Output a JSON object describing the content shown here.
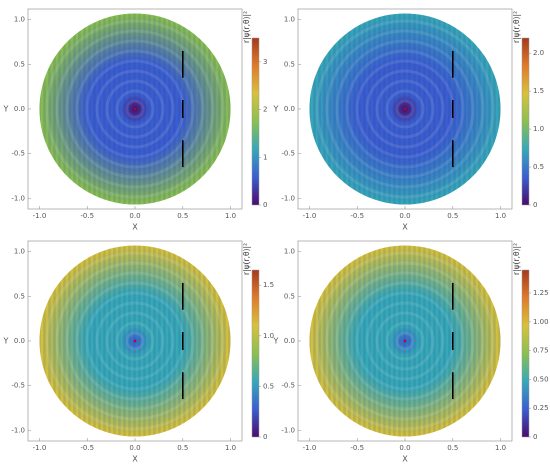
{
  "chart_data": [
    {
      "type": "heatmap",
      "x_label": "X",
      "y_label": "Y",
      "xlim": [
        -1.12,
        1.12
      ],
      "ylim": [
        -1.12,
        1.12
      ],
      "xticks": [
        {
          "value": -1,
          "label": "-1.0"
        },
        -0.5,
        {
          "value": 0,
          "label": "0.0"
        },
        0.5,
        {
          "value": 1,
          "label": "1.0"
        }
      ],
      "yticks": [
        {
          "value": -1,
          "label": "-1.0"
        },
        -0.5,
        {
          "value": 0,
          "label": "0.0"
        },
        0.5,
        {
          "value": 1,
          "label": "1.0"
        }
      ],
      "colorbar_label": "r|ψ(r,θ)|²",
      "clim": [
        0,
        3.5
      ],
      "cticks": [
        0,
        1,
        2,
        3
      ],
      "colormap": [
        "#4b0c6b",
        "#3a5ed0",
        "#36a8b8",
        "#8ac050",
        "#d7c13c",
        "#e07b2a",
        "#a43a1e"
      ]
    },
    {
      "type": "heatmap",
      "x_label": "X",
      "y_label": "Y",
      "xlim": [
        -1.12,
        1.12
      ],
      "ylim": [
        -1.12,
        1.12
      ],
      "xticks": [
        {
          "value": -1,
          "label": "-1.0"
        },
        -0.5,
        {
          "value": 0,
          "label": "0.0"
        },
        0.5,
        {
          "value": 1,
          "label": "1.0"
        }
      ],
      "yticks": [
        {
          "value": -1,
          "label": "-1.0"
        },
        -0.5,
        {
          "value": 0,
          "label": "0.0"
        },
        0.5,
        {
          "value": 1,
          "label": "1.0"
        }
      ],
      "colorbar_label": "r|ψ(r,θ)|²",
      "clim": [
        0,
        2.2
      ],
      "cticks": [
        0,
        0.5,
        {
          "value": 1,
          "label": "1.0"
        },
        1.5,
        {
          "value": 2,
          "label": "2.0"
        }
      ],
      "colormap": [
        "#4b0c6b",
        "#3a5ed0",
        "#36a8b8",
        "#8ac050",
        "#d7c13c",
        "#e07b2a",
        "#a43a1e"
      ]
    },
    {
      "type": "heatmap",
      "x_label": "X",
      "y_label": "Y",
      "xlim": [
        -1.12,
        1.12
      ],
      "ylim": [
        -1.12,
        1.12
      ],
      "xticks": [
        {
          "value": -1,
          "label": "-1.0"
        },
        -0.5,
        {
          "value": 0,
          "label": "0.0"
        },
        0.5,
        {
          "value": 1,
          "label": "1.0"
        }
      ],
      "yticks": [
        {
          "value": -1,
          "label": "-1.0"
        },
        -0.5,
        {
          "value": 0,
          "label": "0.0"
        },
        0.5,
        {
          "value": 1,
          "label": "1.0"
        }
      ],
      "colorbar_label": "r|ψ(r,θ)|²",
      "clim": [
        0,
        1.65
      ],
      "cticks": [
        0,
        0.5,
        {
          "value": 1,
          "label": "1.0"
        },
        1.5
      ],
      "colormap": [
        "#4b0c6b",
        "#3a5ed0",
        "#36a8b8",
        "#8ac050",
        "#d7c13c",
        "#e07b2a",
        "#a43a1e"
      ]
    },
    {
      "type": "heatmap",
      "x_label": "X",
      "y_label": "Y",
      "xlim": [
        -1.12,
        1.12
      ],
      "ylim": [
        -1.12,
        1.12
      ],
      "xticks": [
        {
          "value": -1,
          "label": "-1.0"
        },
        -0.5,
        {
          "value": 0,
          "label": "0.0"
        },
        0.5,
        {
          "value": 1,
          "label": "1.0"
        }
      ],
      "yticks": [
        {
          "value": -1,
          "label": "-1.0"
        },
        -0.5,
        {
          "value": 0,
          "label": "0.0"
        },
        0.5,
        {
          "value": 1,
          "label": "1.0"
        }
      ],
      "colorbar_label": "r|ψ(r,θ)|²",
      "clim": [
        0,
        1.45
      ],
      "cticks": [
        0,
        0.25,
        {
          "value": 0.5,
          "label": "0.50"
        },
        0.75,
        {
          "value": 1,
          "label": "1.00"
        },
        1.25
      ],
      "colormap": [
        "#4b0c6b",
        "#3a5ed0",
        "#36a8b8",
        "#8ac050",
        "#d7c13c",
        "#e07b2a",
        "#a43a1e"
      ]
    }
  ]
}
